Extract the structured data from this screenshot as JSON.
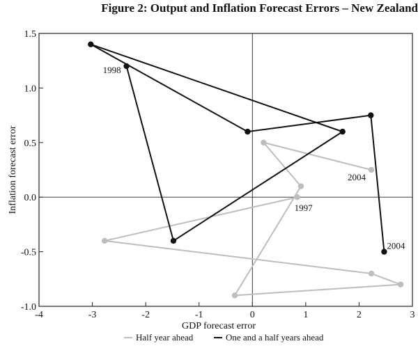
{
  "chart_data": {
    "type": "line",
    "title": "Figure 2: Output and Inflation Forecast Errors – New Zealand",
    "xlabel": "GDP forecast error",
    "ylabel": "Inflation forecast error",
    "xlim": [
      -4,
      3
    ],
    "ylim": [
      -1.0,
      1.5
    ],
    "xticks": [
      "-4",
      "-3",
      "-2",
      "-1",
      "0",
      "1",
      "2",
      "3"
    ],
    "yticks": [
      "1.5",
      "1.0",
      "0.5",
      "0.0",
      "-0.5",
      "-1.0"
    ],
    "grid": false,
    "zero_lines": true,
    "legend_position": "bottom",
    "series": [
      {
        "name": "Half year ahead",
        "color": "#bdbdbd",
        "points": [
          [
            0.84,
            0.0
          ],
          [
            -2.77,
            -0.4
          ],
          [
            2.23,
            -0.7
          ],
          [
            2.78,
            -0.8
          ],
          [
            -0.33,
            -0.9
          ],
          [
            0.91,
            0.1
          ],
          [
            0.21,
            0.5
          ],
          [
            2.23,
            0.25
          ]
        ],
        "labels": [
          {
            "index": 0,
            "text": "1997"
          },
          {
            "index": 7,
            "text": "2004"
          }
        ]
      },
      {
        "name": "One and a half years ahead",
        "color": "#111111",
        "points": [
          [
            -2.36,
            1.2
          ],
          [
            -1.48,
            -0.4
          ],
          [
            1.69,
            0.6
          ],
          [
            -3.03,
            1.4
          ],
          [
            -0.09,
            0.6
          ],
          [
            2.22,
            0.75
          ],
          [
            2.47,
            -0.5
          ]
        ],
        "labels": [
          {
            "index": 0,
            "text": "1998"
          },
          {
            "index": 6,
            "text": "2004"
          }
        ]
      }
    ]
  }
}
